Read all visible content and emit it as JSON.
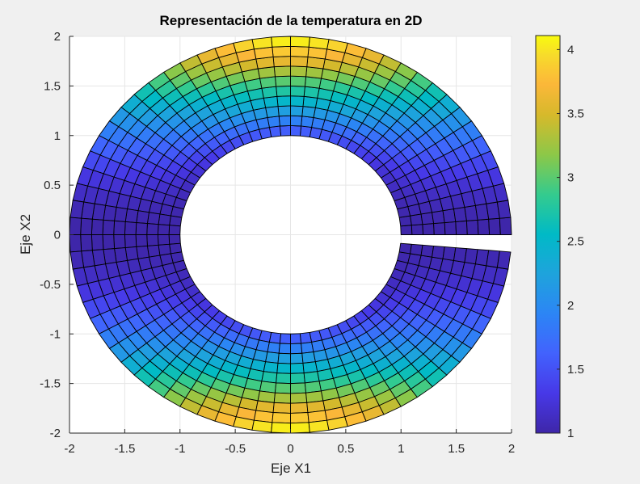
{
  "chart_data": {
    "type": "heatmap",
    "subtype": "polar-surface (pcolor on annular mesh, viewed in 2D)",
    "title": "Representación de la temperatura en 2D",
    "xlabel": "Eje X1",
    "ylabel": "Eje X2",
    "xlim": [
      -2,
      2
    ],
    "ylim": [
      -2,
      2
    ],
    "xticks": [
      -2,
      -1.5,
      -1,
      -0.5,
      0,
      0.5,
      1,
      1.5,
      2
    ],
    "yticks": [
      -2,
      -1.5,
      -1,
      -0.5,
      0,
      0.5,
      1,
      1.5,
      2
    ],
    "xtick_labels": [
      "-2",
      "-1.5",
      "-1",
      "-0.5",
      "0",
      "0.5",
      "1",
      "1.5",
      "2"
    ],
    "ytick_labels": [
      "-2",
      "-1.5",
      "-1",
      "-0.5",
      "0",
      "0.5",
      "1",
      "1.5",
      "2"
    ],
    "grid": true,
    "domain": {
      "shape": "annulus with slit",
      "r_inner": 1,
      "r_outer": 2,
      "theta_start_deg": 0,
      "theta_end_deg": 355,
      "radial_cells": 10,
      "angular_cells": 71
    },
    "radial_profile_at_theta_90": {
      "r_centers": [
        1.05,
        1.15,
        1.25,
        1.35,
        1.45,
        1.55,
        1.65,
        1.75,
        1.85,
        1.95
      ],
      "values": [
        1.6,
        1.9,
        2.2,
        2.5,
        2.75,
        3.0,
        3.3,
        3.6,
        3.85,
        4.05
      ]
    },
    "model": "T(r,θ) ≈ 1 + (T90(r) - 1)·sin²θ ; minimum ≈ 1 along θ=0 and θ=180°, maximum ≈ 4.1 at r=2, θ=90°/270°",
    "colorbar": {
      "colormap": "parula",
      "clim": [
        1,
        4.11
      ],
      "ticks": [
        1,
        1.5,
        2,
        2.5,
        3,
        3.5,
        4
      ],
      "tick_labels": [
        "1",
        "1.5",
        "2",
        "2.5",
        "3",
        "3.5",
        "4"
      ],
      "position": "right"
    },
    "edge_color": "#000000"
  },
  "colors": {
    "figure_bg": "#f0f0f0",
    "axes_bg": "#ffffff",
    "grid": "#e6e6e6",
    "axis": "#262626"
  }
}
